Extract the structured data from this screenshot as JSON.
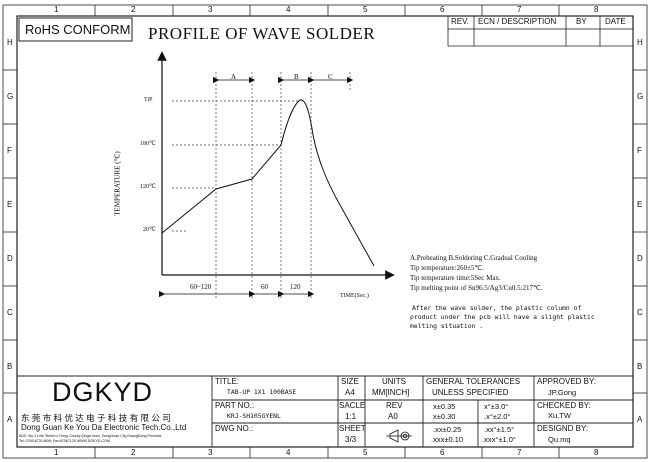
{
  "frame": {
    "col_numbers": [
      "1",
      "2",
      "3",
      "4",
      "5",
      "6",
      "7",
      "8"
    ],
    "row_letters": [
      "H",
      "G",
      "F",
      "E",
      "D",
      "C",
      "B",
      "A"
    ]
  },
  "header": {
    "rohs": "RoHS CONFORM",
    "title": "PROFILE OF WAVE SOLDER"
  },
  "revision_table": {
    "headers": [
      "REV.",
      "ECN / DESCRIPTION",
      "BY",
      "DATE"
    ]
  },
  "chart_data": {
    "type": "line",
    "ylabel": "TEMPERATURE (℃)",
    "xlabel": "TIME(Sec.)",
    "y_ticks": [
      "TiP",
      "180℃",
      "120℃",
      "20℃"
    ],
    "phases": [
      "A",
      "B",
      "C"
    ],
    "x_segments": [
      {
        "label": "60~120"
      },
      {
        "label": "60"
      },
      {
        "label": "120"
      }
    ]
  },
  "notes": {
    "phases": "A.Preheating  B.Soldering  C.Gradual Cooling",
    "tip_temp": "Tip temperature:260±5℃.",
    "tip_time": "Tip temperature time:5Sec Max.",
    "melting": "Tip melting point of Sn96.5/Ag3/Cu0.5:217℃.",
    "after": [
      "After the wave solder, the plastic  column of",
      "product  under the pcb will have a slight plastic",
      "melting situation ."
    ]
  },
  "title_block": {
    "logo": "DGKYD",
    "company_cn": "东 莞 市 科 优 达 电 子 科 技 有 限 公 司",
    "company_en": "Dong Guan Ke You Da Electronic Tech.Co.,Ltd",
    "address": "ADD.:No.1 Lihe Street,Li Heng County,Qingxi town, DongGuan City,GuangDong Province",
    "contact": "Tel: 0769-87314608; Fax:87067129  WWW.DGKYD.COM",
    "title_label": "TITLE:",
    "title_value": "TAB-UP 1X1 100BASE",
    "part_label": "PART NO.:",
    "part_value": "KRJ-SH105GYENL",
    "dwg_label": "DWG NO.:",
    "size_label": "SIZE",
    "size_value": "A4",
    "units_label": "UNITS",
    "units_value": "MM[INCH]",
    "scale_label": "SACLE",
    "scale_value": "1:1",
    "rev_label": "REV",
    "rev_value": "A0",
    "sheet_label": "SHEET",
    "sheet_value": "3/3",
    "tol_title1": "GENERAL TOLERANCES",
    "tol_title2": "UNLESS SPECIFIED",
    "tolerances": [
      [
        "x±0.35",
        "x°±3.0°"
      ],
      [
        "x±0.30",
        ".x°±2.0°"
      ],
      [
        ".xx±0.25",
        ".xx°±1.5°"
      ],
      [
        ".xxx±0.10",
        ".xxx°±1.0°"
      ]
    ],
    "approved_label": "APPROVED BY:",
    "approved_value": "JP.Gong",
    "checked_label": "CHECKED BY:",
    "checked_value": "Xu.TW",
    "designed_label": "DESIGND BY:",
    "designed_value": "Qu.mq"
  }
}
